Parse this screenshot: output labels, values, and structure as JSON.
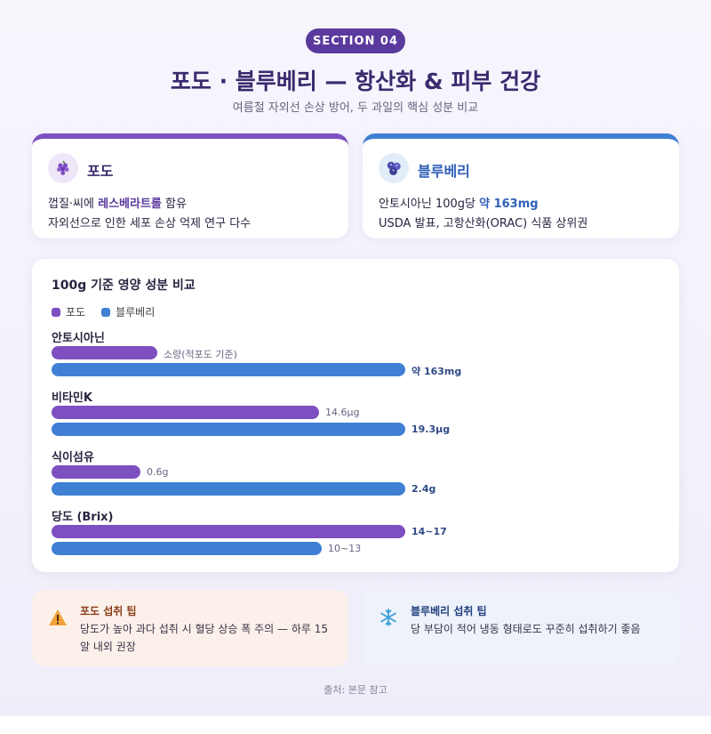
{
  "header": {
    "badge": "SECTION 04",
    "title": "포도 · 블루베리 — 항산화 & 피부 건강",
    "subtitle": "여름철 자외선 손상 방어, 두 과일의 핵심 성분 비교"
  },
  "cards": {
    "grape": {
      "icon": "grape-icon",
      "name": "포도",
      "line1_prefix": "껍질·씨에 ",
      "line1_highlight": "레스베라트롤",
      "line1_suffix": " 함유",
      "line2": "자외선으로 인한 세포 손상 억제 연구 다수"
    },
    "blueberry": {
      "icon": "blueberry-icon",
      "name": "블루베리",
      "line1_prefix": "안토시아닌 100g당 ",
      "line1_highlight": "약 163mg",
      "line2": "USDA 발표, 고항산화(ORAC) 식품 상위권"
    }
  },
  "chart_data": {
    "type": "bar",
    "orientation": "horizontal",
    "title": "100g 기준 영양 성분 비교",
    "legend_position": "top-left",
    "series": [
      {
        "name": "포도",
        "color": "#7d4fc0"
      },
      {
        "name": "블루베리",
        "color": "#3f7fd4"
      }
    ],
    "categories": [
      {
        "label": "안토시아닌",
        "grape": {
          "display": "소량(적포도 기준)",
          "ratio": 0.3
        },
        "blueberry": {
          "display": "약 163mg",
          "ratio": 1.0
        }
      },
      {
        "label": "비타민K",
        "grape": {
          "value": 14.6,
          "display": "14.6μg",
          "ratio": 0.756
        },
        "blueberry": {
          "value": 19.3,
          "display": "19.3μg",
          "ratio": 1.0
        }
      },
      {
        "label": "식이섬유",
        "grape": {
          "value": 0.6,
          "display": "0.6g",
          "ratio": 0.25
        },
        "blueberry": {
          "value": 2.4,
          "display": "2.4g",
          "ratio": 1.0
        }
      },
      {
        "label": "당도 (Brix)",
        "grape": {
          "display": "14~17",
          "ratio": 1.0
        },
        "blueberry": {
          "display": "10~13",
          "ratio": 0.765
        }
      }
    ]
  },
  "tips": {
    "grape": {
      "icon": "warning-icon",
      "title": "포도 섭취 팁",
      "text": "당도가 높아 과다 섭취 시 혈당 상승 폭 주의 — 하루 15알 내외 권장"
    },
    "blueberry": {
      "icon": "snowflake-icon",
      "title": "블루베리 섭취 팁",
      "text": "당 부담이 적어 냉동 형태로도 꾸준히 섭취하기 좋음"
    }
  },
  "footer": {
    "source": "출처: 본문 참고"
  }
}
